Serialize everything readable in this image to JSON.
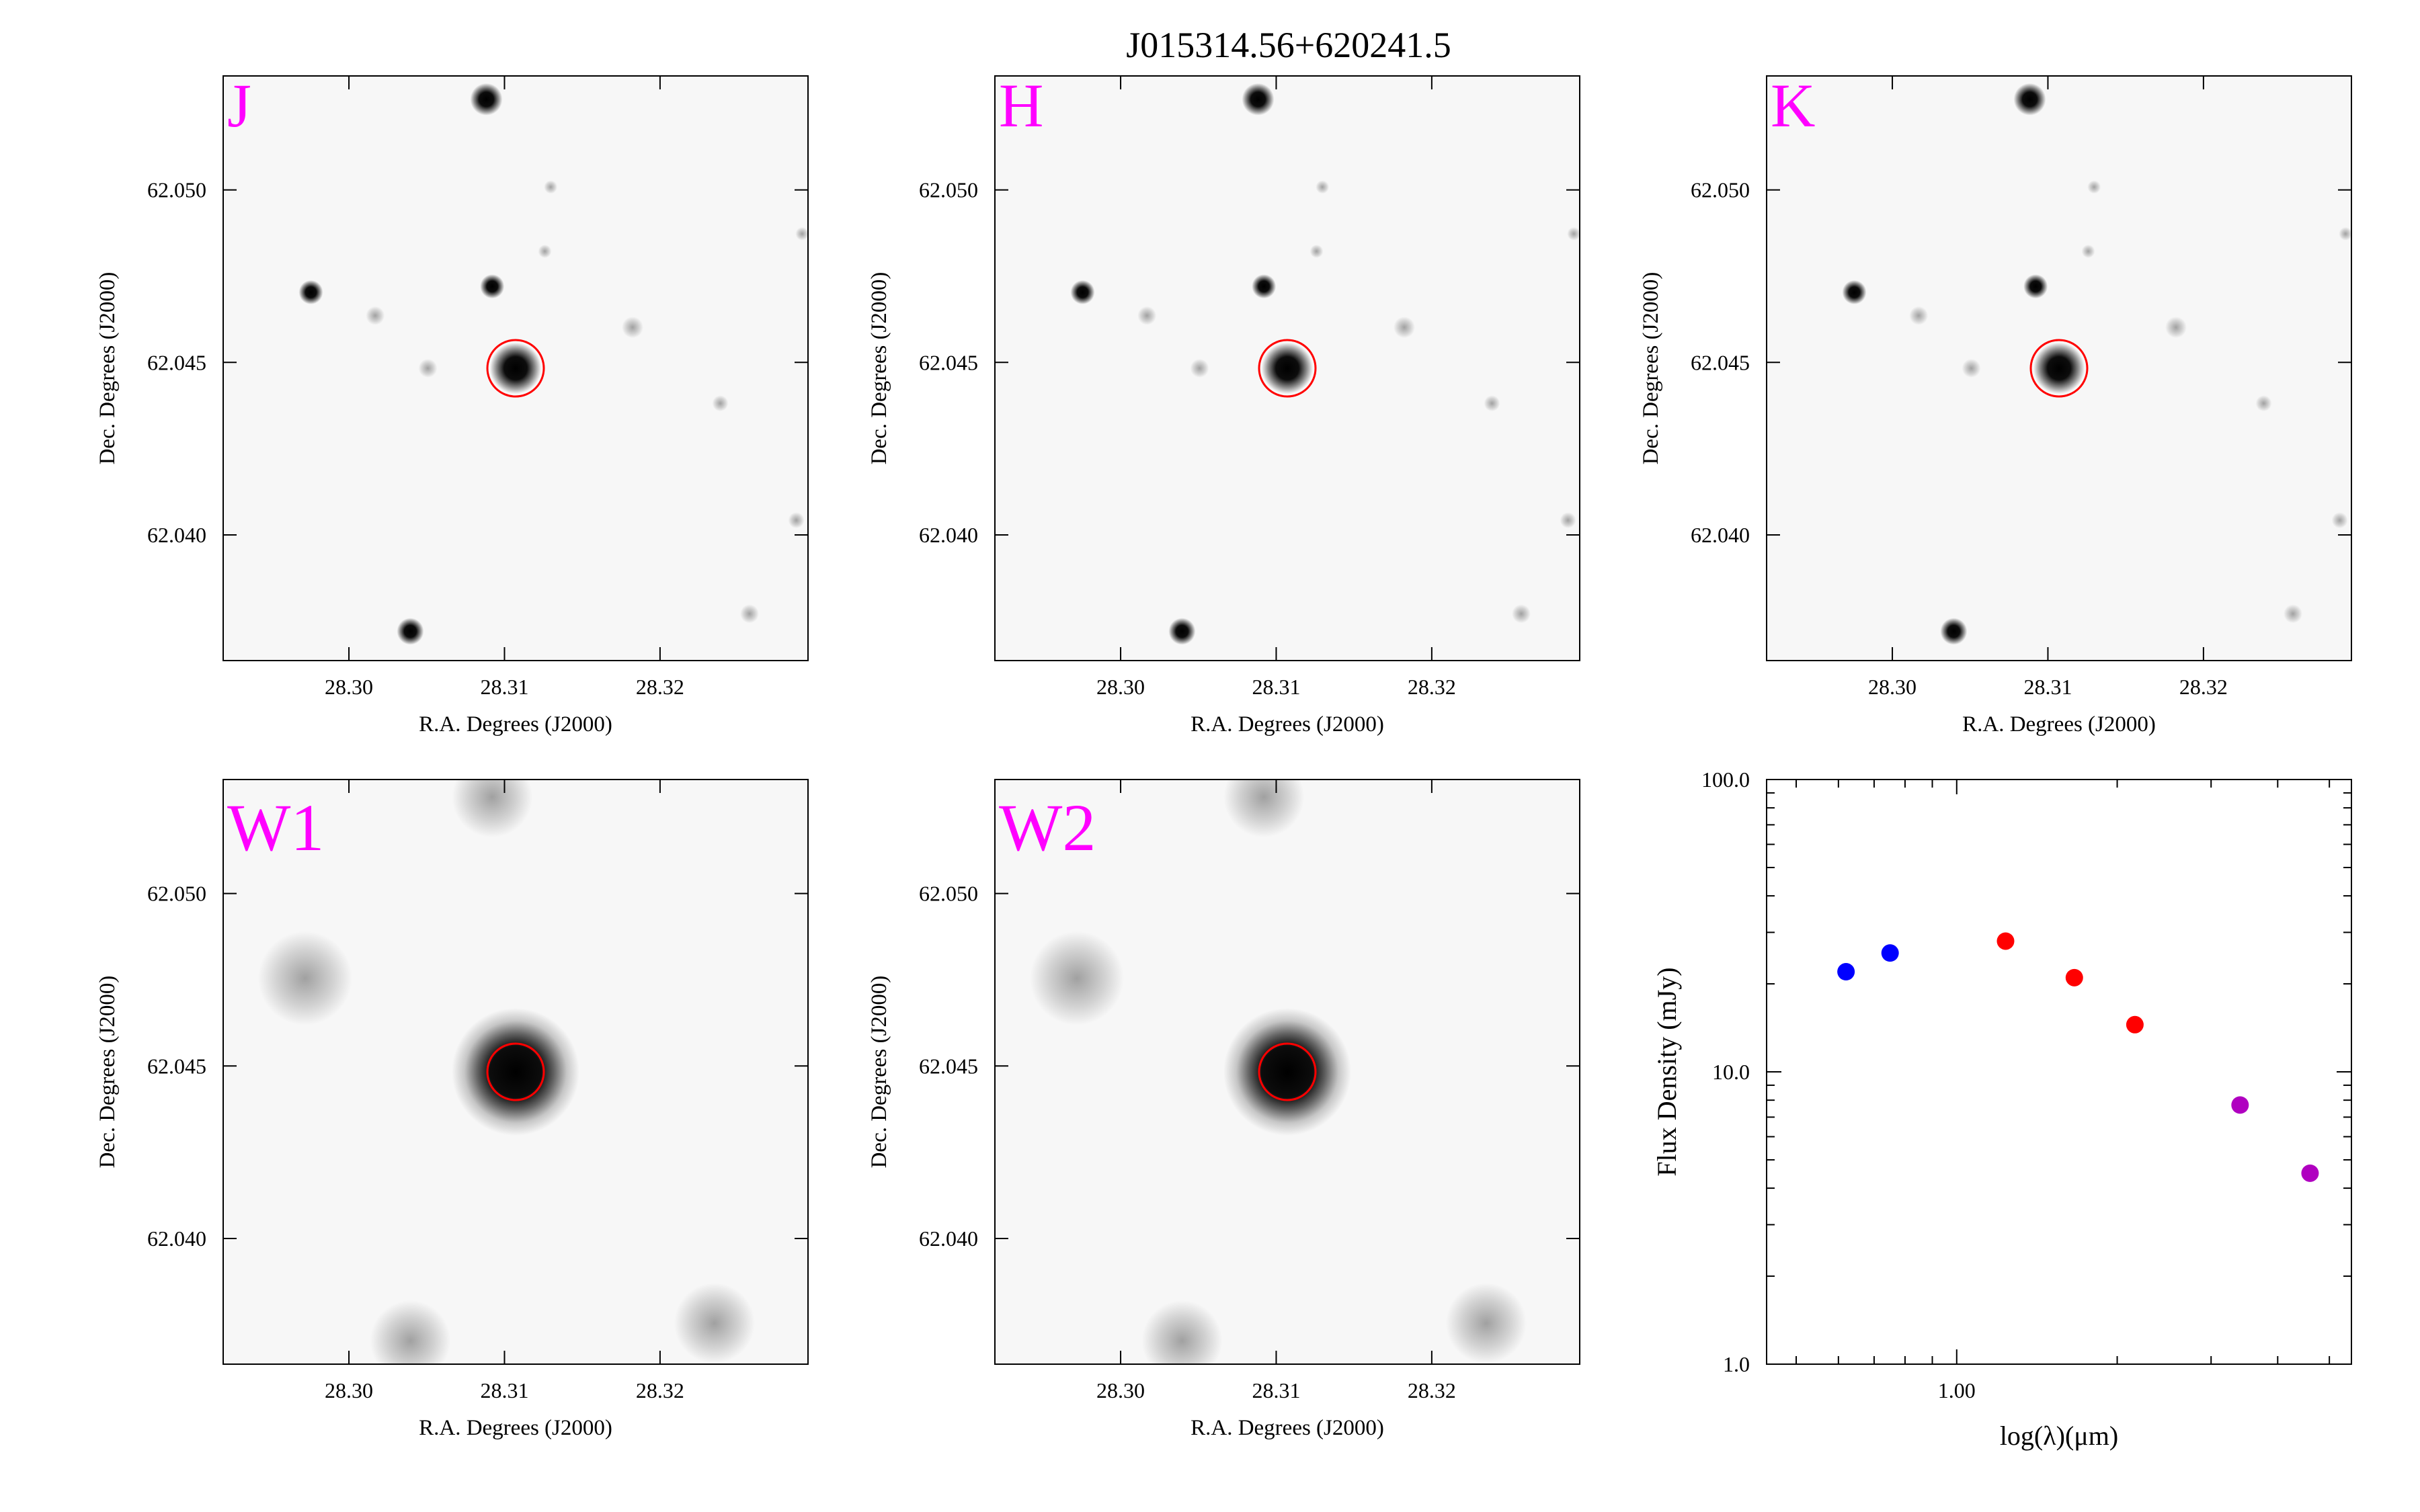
{
  "title": "J015314.56+620241.5",
  "colors": {
    "band_label": "#ff00ff",
    "aperture": "#ff0000",
    "frame": "#000000",
    "sky_background": "#f7f7f7"
  },
  "panels": [
    {
      "band": "J",
      "xlabel": "R.A. Degrees (J2000)",
      "ylabel": "Dec. Degrees (J2000)",
      "xticks": [
        "28.30",
        "28.31",
        "28.32"
      ],
      "yticks": [
        "62.050",
        "62.045",
        "62.040"
      ]
    },
    {
      "band": "H",
      "xlabel": "R.A. Degrees (J2000)",
      "ylabel": "Dec. Degrees (J2000)",
      "xticks": [
        "28.30",
        "28.31",
        "28.32"
      ],
      "yticks": [
        "62.050",
        "62.045",
        "62.040"
      ]
    },
    {
      "band": "K",
      "xlabel": "R.A. Degrees (J2000)",
      "ylabel": "Dec. Degrees (J2000)",
      "xticks": [
        "28.30",
        "28.31",
        "28.32"
      ],
      "yticks": [
        "62.050",
        "62.045",
        "62.040"
      ]
    },
    {
      "band": "W1",
      "xlabel": "R.A. Degrees (J2000)",
      "ylabel": "Dec. Degrees (J2000)",
      "xticks": [
        "28.30",
        "28.31",
        "28.32"
      ],
      "yticks": [
        "62.050",
        "62.045",
        "62.040"
      ]
    },
    {
      "band": "W2",
      "xlabel": "R.A. Degrees (J2000)",
      "ylabel": "Dec. Degrees (J2000)",
      "xticks": [
        "28.30",
        "28.31",
        "28.32"
      ],
      "yticks": [
        "62.050",
        "62.045",
        "62.040"
      ]
    }
  ],
  "chart_data": {
    "type": "scatter",
    "xlabel": "log(λ)(μm)",
    "ylabel": "Flux Density (mJy)",
    "x_log": true,
    "y_log": true,
    "xlim": [
      0.44,
      5.5
    ],
    "ylim": [
      1,
      100
    ],
    "xticks": [
      "1.00"
    ],
    "yticks": [
      "100.0",
      "10.0",
      "1.0"
    ],
    "series": [
      {
        "color": "#0000ff",
        "x": [
          0.62,
          0.75
        ],
        "y": [
          22,
          25.5
        ]
      },
      {
        "color": "#ff0000",
        "x": [
          1.235,
          1.662,
          2.159
        ],
        "y": [
          28,
          21,
          14.5
        ]
      },
      {
        "color": "#b000c0",
        "x": [
          3.4,
          4.6
        ],
        "y": [
          7.7,
          4.5
        ]
      }
    ]
  }
}
